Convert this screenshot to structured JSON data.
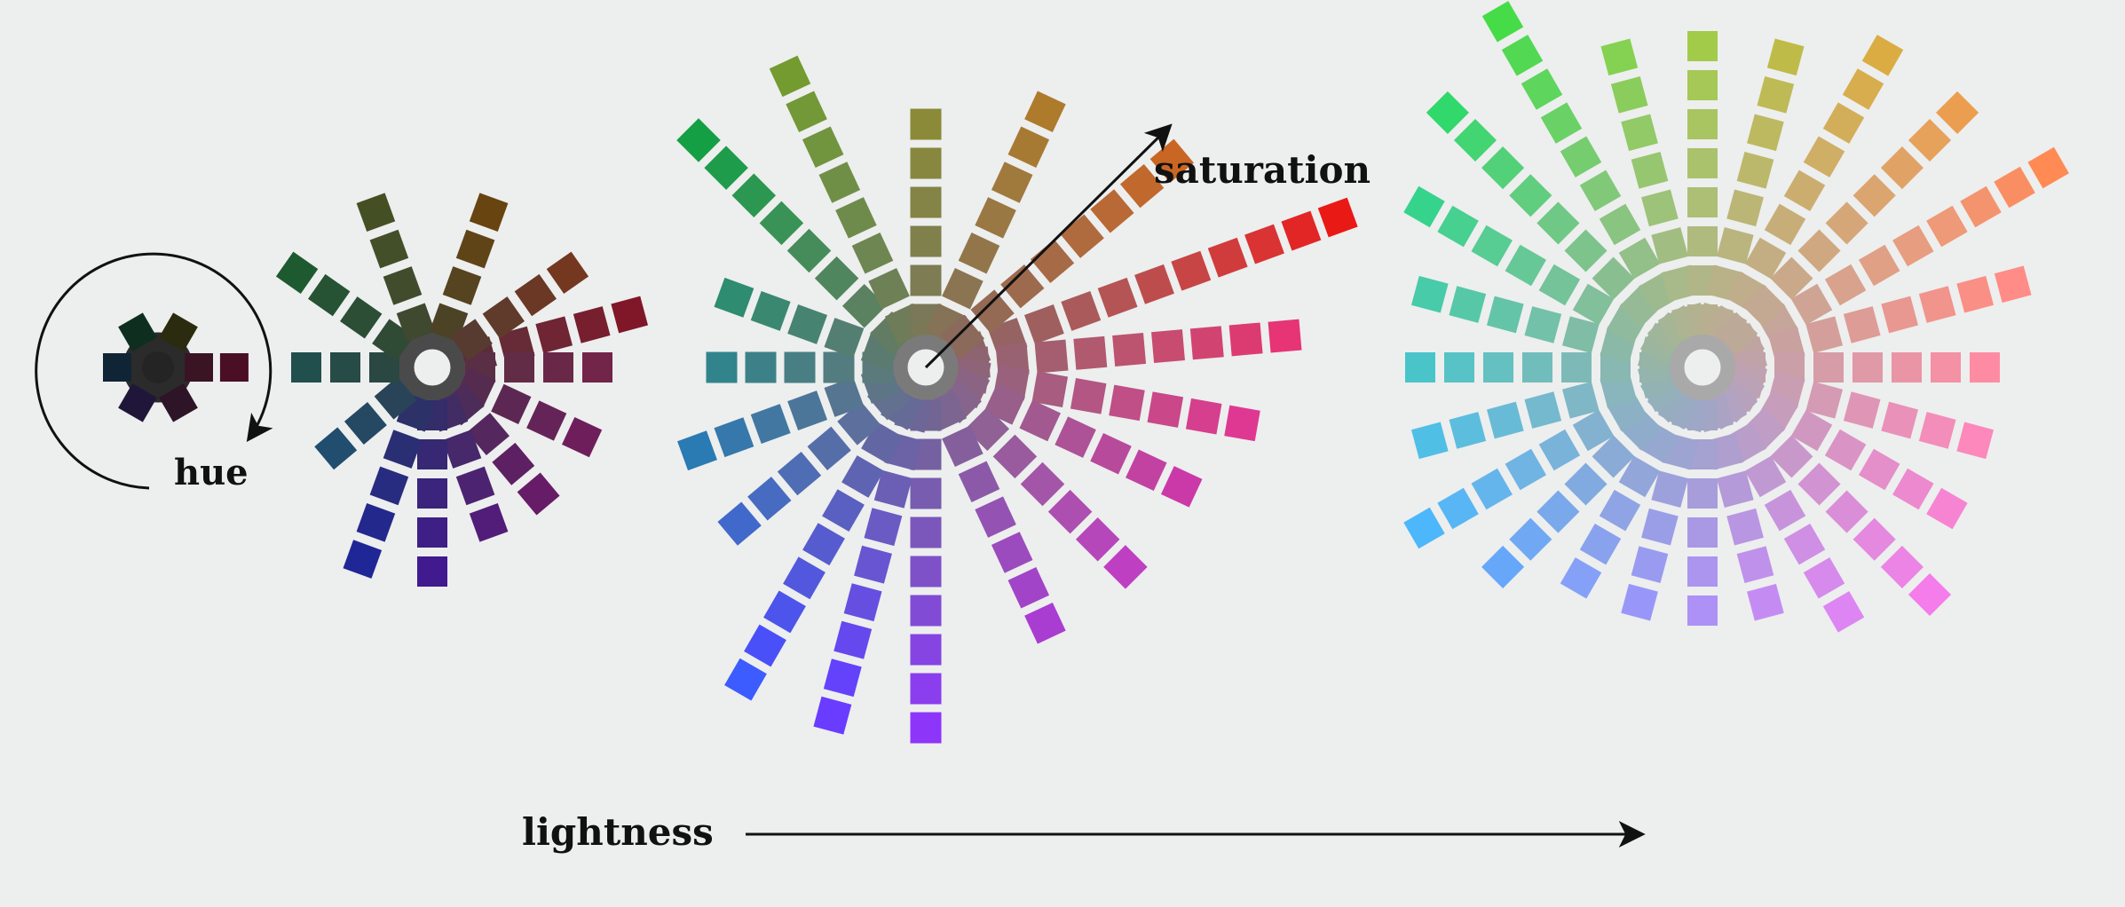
{
  "labels": {
    "hue": "hue",
    "saturation": "saturation",
    "lightness": "lightness"
  },
  "background": "#edeeee",
  "wheels": [
    {
      "step": 1,
      "hue_levels": 6,
      "max_saturation_steps": 1,
      "reach_from_hue": [
        [
          "4,0,7,255",
          1
        ],
        [
          "1,1,2,6",
          1
        ]
      ],
      "hue_spokes": [
        {
          "hue": 0,
          "colors": [
            "#3b1424",
            "#4a0f24"
          ]
        },
        {
          "hue": 60,
          "colors": [
            "#2d1426"
          ]
        },
        {
          "hue": 120,
          "colors": [
            "#20163a"
          ]
        },
        {
          "hue": 180,
          "colors": [
            "#0f2536"
          ]
        },
        {
          "hue": 240,
          "colors": [
            "#0e2f1f"
          ]
        },
        {
          "hue": 300,
          "colors": [
            "#2b2c0f"
          ]
        }
      ]
    },
    {
      "step": 2,
      "hue_levels": 12,
      "spokes": [
        {
          "deg": -15,
          "colors": [
            "#5b2c37",
            "#662b36",
            "#6f2533",
            "#771e2f",
            "#801728"
          ]
        },
        {
          "deg": 0,
          "colors": [
            "#5a2e44",
            "#622c46",
            "#6a2848",
            "#722449"
          ]
        },
        {
          "deg": 25,
          "colors": [
            "#552c4f",
            "#5c2853",
            "#652457",
            "#6e1f5b"
          ]
        },
        {
          "deg": 50,
          "colors": [
            "#4e2c5a",
            "#55275f",
            "#5d2163",
            "#671c67"
          ]
        },
        {
          "deg": 70,
          "colors": [
            "#412c64",
            "#46286b",
            "#4c2371",
            "#521d78"
          ]
        },
        {
          "deg": 90,
          "colors": [
            "#352c6a",
            "#372873",
            "#3a247c",
            "#3d1f86",
            "#401a8e"
          ]
        },
        {
          "deg": 110,
          "colors": [
            "#2c3168",
            "#2a2f74",
            "#272c80",
            "#23288c",
            "#1f2696"
          ]
        },
        {
          "deg": 140,
          "colors": [
            "#294458",
            "#264963",
            "#214d6e"
          ]
        },
        {
          "deg": 180,
          "colors": [
            "#2b4742",
            "#274b47",
            "#214f4d"
          ]
        },
        {
          "deg": 215,
          "colors": [
            "#2f4a35",
            "#2b4e35",
            "#255333",
            "#1e5a30"
          ]
        },
        {
          "deg": 250,
          "colors": [
            "#3e4930",
            "#404c2c",
            "#424f28",
            "#445024"
          ]
        },
        {
          "deg": 290,
          "colors": [
            "#4c4327",
            "#55441f",
            "#5f4418",
            "#684410"
          ]
        },
        {
          "deg": 325,
          "colors": [
            "#573a30",
            "#603a2b",
            "#6a3825",
            "#743720"
          ]
        }
      ]
    },
    {
      "step": 3,
      "hue_levels": 18,
      "spokes": [
        {
          "deg": -20,
          "colors": [
            "#8d6464",
            "#966363",
            "#a05f5f",
            "#aa5a5a",
            "#b45454",
            "#bd4d4d",
            "#c74545",
            "#d03c3c",
            "#d93333",
            "#e22626",
            "#e91a15"
          ]
        },
        {
          "deg": -5,
          "colors": [
            "#8d6470",
            "#996270",
            "#a55e6f",
            "#b1596f",
            "#bc536f",
            "#c74c70",
            "#d14471",
            "#dc3b72",
            "#e63474"
          ]
        },
        {
          "deg": 10,
          "colors": [
            "#8e6479",
            "#9a617d",
            "#a75c80",
            "#b35683",
            "#bf4f86",
            "#ca478a",
            "#d53f8d",
            "#df3892"
          ]
        },
        {
          "deg": 25,
          "colors": [
            "#8c6483",
            "#975f8a",
            "#a25990",
            "#ad5296",
            "#b84a9c",
            "#c242a2",
            "#cb39a8"
          ]
        },
        {
          "deg": 45,
          "colors": [
            "#85658c",
            "#8f6195",
            "#995b9e",
            "#a355a8",
            "#ad4eb1",
            "#b647ba",
            "#bf3fc2"
          ]
        },
        {
          "deg": 65,
          "colors": [
            "#7c6591",
            "#845f9c",
            "#8c59a8",
            "#9452b3",
            "#9b4bbe",
            "#a244c8",
            "#a93dd2"
          ]
        },
        {
          "deg": 90,
          "colors": [
            "#726594",
            "#7561a1",
            "#785caf",
            "#7b57bc",
            "#7e51c9",
            "#824bd6",
            "#8644e2",
            "#8a3eee",
            "#8e35fa"
          ]
        },
        {
          "deg": 105,
          "colors": [
            "#6c6797",
            "#6b63a6",
            "#6a5fb5",
            "#695ac4",
            "#6755d2",
            "#664fe0",
            "#6548ee",
            "#6442fb",
            "#6a3cff"
          ]
        },
        {
          "deg": 120,
          "colors": [
            "#666a96",
            "#6267a4",
            "#5e64b2",
            "#5a60c1",
            "#565ccf",
            "#5258dd",
            "#4d54eb",
            "#4950f8",
            "#3c5cff"
          ]
        },
        {
          "deg": 140,
          "colors": [
            "#637090",
            "#5d6f9c",
            "#566ea8",
            "#4f6db4",
            "#476bc0",
            "#4069cb"
          ]
        },
        {
          "deg": 160,
          "colors": [
            "#5d7587",
            "#557590",
            "#4c7699",
            "#4277a2",
            "#3678ab",
            "#2a7ab3"
          ]
        },
        {
          "deg": 180,
          "colors": [
            "#5b7a7c",
            "#527c80",
            "#487f84",
            "#3d8188",
            "#32848c"
          ]
        },
        {
          "deg": 200,
          "colors": [
            "#5c7b70",
            "#527f71",
            "#478371",
            "#3b8871",
            "#2e8c70"
          ]
        },
        {
          "deg": 225,
          "colors": [
            "#617c62",
            "#5a8160",
            "#50865d",
            "#458c5a",
            "#399256",
            "#2b9751",
            "#1e9c4c",
            "#149f44"
          ]
        },
        {
          "deg": 245,
          "colors": [
            "#6e7c5a",
            "#6e8156",
            "#6e8651",
            "#6f8b4c",
            "#708f46",
            "#71943f",
            "#729837",
            "#739b2f"
          ]
        },
        {
          "deg": 270,
          "colors": [
            "#7a7857",
            "#7d7c52",
            "#80804c",
            "#838446",
            "#87873f",
            "#8a8a38"
          ]
        },
        {
          "deg": 295,
          "colors": [
            "#857257",
            "#8b7451",
            "#92764a",
            "#997843",
            "#a0793c",
            "#a77a34",
            "#ae7a2c"
          ]
        },
        {
          "deg": 320,
          "colors": [
            "#8b6a5c",
            "#946a55",
            "#9d6a4e",
            "#a66a46",
            "#af6a3e",
            "#b86936",
            "#c1682d",
            "#ca6624"
          ]
        }
      ]
    },
    {
      "step": 4,
      "hue_levels": 24,
      "spokes": [
        {
          "deg": -30,
          "colors": [
            "#bda69f",
            "#c6a59a",
            "#cfa494",
            "#d8a28d",
            "#e0a086",
            "#e79d7f",
            "#ee9977",
            "#f4946e",
            "#fa8e63",
            "#ff8a54"
          ]
        },
        {
          "deg": -15,
          "colors": [
            "#bfa4a2",
            "#c9a19e",
            "#d49f9a",
            "#de9c96",
            "#e89891",
            "#f1948c",
            "#fa8f86",
            "#ff8c86"
          ]
        },
        {
          "deg": 0,
          "colors": [
            "#c0a2a9",
            "#cb9fa8",
            "#d69ca7",
            "#e099a6",
            "#ea95a5",
            "#f491a4",
            "#fd8ca3"
          ]
        },
        {
          "deg": 15,
          "colors": [
            "#bfa2b0",
            "#ca9eb2",
            "#d59ab4",
            "#df96b6",
            "#e991b8",
            "#f38dba",
            "#fc88bc"
          ]
        },
        {
          "deg": 30,
          "colors": [
            "#bca2b7",
            "#c69dbb",
            "#d098c0",
            "#da93c5",
            "#e48eca",
            "#ed89ce",
            "#f684d3"
          ]
        },
        {
          "deg": 45,
          "colors": [
            "#b7a2bd",
            "#c09dc4",
            "#c998cb",
            "#d293d2",
            "#db8ed8",
            "#e489df",
            "#ec84e5",
            "#f47ceb"
          ]
        },
        {
          "deg": 60,
          "colors": [
            "#b1a3c1",
            "#b99eca",
            "#c099d3",
            "#c794dc",
            "#ce8fe4",
            "#d68aeb",
            "#dd85f3"
          ]
        },
        {
          "deg": 75,
          "colors": [
            "#aaa3c4",
            "#af9fce",
            "#b49ad8",
            "#b996e2",
            "#bf91eb",
            "#c48cf3"
          ]
        },
        {
          "deg": 90,
          "colors": [
            "#a3a5c5",
            "#a5a1d0",
            "#a79ddb",
            "#a999e5",
            "#ab95ee",
            "#ad91f7"
          ]
        },
        {
          "deg": 105,
          "colors": [
            "#9ea7c5",
            "#9da4d1",
            "#9ca1dc",
            "#9a9ee6",
            "#999bf0",
            "#9897f9"
          ]
        },
        {
          "deg": 120,
          "colors": [
            "#9aaac3",
            "#96a8cf",
            "#92a6da",
            "#8ea4e4",
            "#89a2ee",
            "#85a0f7"
          ]
        },
        {
          "deg": 135,
          "colors": [
            "#97adbf",
            "#90accb",
            "#89abd6",
            "#81aae0",
            "#79a9ea",
            "#70a8f3",
            "#66a7fa"
          ]
        },
        {
          "deg": 150,
          "colors": [
            "#94b0ba",
            "#8cb1c5",
            "#83b2d0",
            "#79b3da",
            "#6fb4e3",
            "#64b5ec",
            "#58b6f4",
            "#4cb7fb"
          ]
        },
        {
          "deg": 165,
          "colors": [
            "#93b2b4",
            "#89b5bd",
            "#7fb7c6",
            "#74b9ce",
            "#68bbd6",
            "#5cbdde",
            "#4fbfe6"
          ]
        },
        {
          "deg": 180,
          "colors": [
            "#94b4ad",
            "#89b7b2",
            "#7dbab7",
            "#71bdbc",
            "#65c0c1",
            "#57c3c6",
            "#49c5ca"
          ]
        },
        {
          "deg": 195,
          "colors": [
            "#97b5a6",
            "#8bb9a7",
            "#7fbda7",
            "#72c1a8",
            "#64c4a8",
            "#56c8a8",
            "#47cba8"
          ]
        },
        {
          "deg": 210,
          "colors": [
            "#9bb59f",
            "#8fba9d",
            "#82bf9b",
            "#74c399",
            "#66c896",
            "#57cc93",
            "#47d090",
            "#36d38c"
          ]
        },
        {
          "deg": 225,
          "colors": [
            "#a0b59a",
            "#95ba95",
            "#89bf90",
            "#7cc48b",
            "#6fc885",
            "#61cd7f",
            "#52d179",
            "#42d572",
            "#31d86b"
          ]
        },
        {
          "deg": 240,
          "colors": [
            "#a6b596",
            "#9dba8f",
            "#93bf88",
            "#89c480",
            "#7fc978",
            "#75cd70",
            "#6ad167",
            "#5ed55d",
            "#52d853",
            "#45dc48"
          ]
        },
        {
          "deg": 255,
          "colors": [
            "#adb492",
            "#a8b98a",
            "#a2bd82",
            "#9dc279",
            "#97c670",
            "#91ca66",
            "#8bcd5c",
            "#85d151"
          ]
        },
        {
          "deg": 270,
          "colors": [
            "#b3b290",
            "#b1b688",
            "#afba7f",
            "#adbe75",
            "#aac26b",
            "#a8c561",
            "#a5c856",
            "#a2cb4a"
          ]
        },
        {
          "deg": 285,
          "colors": [
            "#b8af91",
            "#b9b288",
            "#bab47f",
            "#bbb675",
            "#bcb86b",
            "#bdb960",
            "#beba55",
            "#bfbb49"
          ]
        },
        {
          "deg": 300,
          "colors": [
            "#bbac94",
            "#bfad8c",
            "#c3ae83",
            "#c7ae79",
            "#cbae6f",
            "#cfae65",
            "#d3ae5a",
            "#d7ad4e",
            "#dbac42"
          ]
        },
        {
          "deg": 315,
          "colors": [
            "#bda998",
            "#c3a991",
            "#c9a989",
            "#cfa881",
            "#d5a778",
            "#dba56f",
            "#e1a365",
            "#e6a15a",
            "#eb9e4f"
          ]
        }
      ]
    }
  ]
}
